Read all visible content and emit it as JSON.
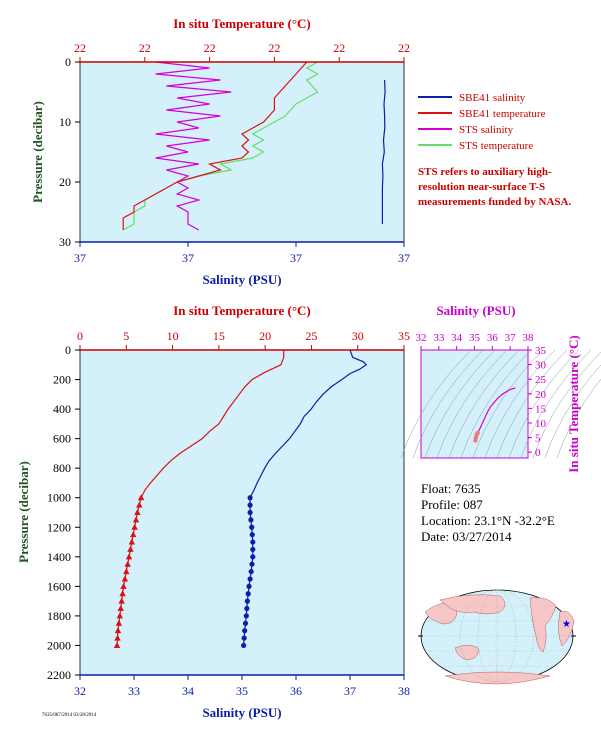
{
  "colors": {
    "salinity": "#0a1faa",
    "temperature": "#dd1111",
    "sts_salinity": "#d400d4",
    "sts_temperature": "#66dd66",
    "plot_bg": "#d4f0fa",
    "axis_blue": "#0a1faa",
    "axis_red": "#cc0000",
    "axis_green": "#225522",
    "axis_magenta": "#cc00cc"
  },
  "legend": {
    "items": [
      {
        "label": "SBE41 salinity",
        "color": "#0a1faa"
      },
      {
        "label": "SBE41 temperature",
        "color": "#dd1111"
      },
      {
        "label": "STS salinity",
        "color": "#d400d4"
      },
      {
        "label": "STS temperature",
        "color": "#66dd66"
      }
    ],
    "note": "STS refers to auxiliary high-resolution near-surface T-S measurements funded by NASA."
  },
  "float_info": {
    "float": "Float:  7635",
    "profile": "Profile:  087",
    "location": "Location:  23.1°N  -32.2°E",
    "date": "Date:  03/27/2014"
  },
  "footer": "7635/087/2014 03/28/2014",
  "chart_data": [
    {
      "type": "line",
      "title": "",
      "top_axis_label": "In situ Temperature (°C)",
      "bottom_axis_label": "Salinity (PSU)",
      "ylabel": "Pressure (decibar)",
      "top_ticks": [
        "22",
        "22",
        "22",
        "22",
        "22",
        "22"
      ],
      "bottom_ticks": [
        "37",
        "37",
        "37",
        "37"
      ],
      "y_ticks": [
        0,
        10,
        20,
        30
      ],
      "ylim": [
        30,
        0
      ],
      "temp_range": [
        21.9,
        22.05
      ],
      "sal_range": [
        36.85,
        37.15
      ],
      "series": [
        {
          "name": "SBE41 salinity",
          "color": "#0a1faa",
          "p": [
            3,
            5,
            7,
            9,
            11,
            13,
            15,
            17,
            19,
            21,
            23,
            25,
            27
          ],
          "sal": [
            37.132,
            37.1325,
            37.1315,
            37.132,
            37.1322,
            37.131,
            37.1318,
            37.13,
            37.1305,
            37.13,
            37.13,
            37.13,
            37.13
          ]
        },
        {
          "name": "STS salinity",
          "color": "#d400d4",
          "p": [
            0,
            1,
            2,
            3,
            4,
            5,
            6,
            7,
            8,
            9,
            10,
            11,
            12,
            13,
            14,
            15,
            16,
            17,
            18,
            19,
            20,
            21,
            22,
            23,
            24,
            25,
            26,
            27,
            28
          ],
          "sal": [
            36.92,
            36.97,
            36.92,
            36.98,
            36.93,
            36.99,
            36.94,
            36.97,
            36.93,
            36.98,
            36.94,
            36.96,
            36.92,
            36.97,
            36.93,
            36.95,
            36.92,
            36.96,
            36.93,
            36.95,
            36.94,
            36.95,
            36.94,
            36.96,
            36.94,
            36.95,
            36.95,
            36.95,
            36.96
          ]
        },
        {
          "name": "STS temperature",
          "color": "#66dd66",
          "p": [
            0,
            1,
            2,
            3,
            5,
            7,
            9,
            10,
            11,
            12,
            13,
            14,
            15,
            16,
            17,
            18,
            19,
            20,
            21,
            22,
            23,
            24,
            25,
            26,
            27,
            28
          ],
          "temp": [
            22.01,
            22.005,
            22.01,
            22.005,
            22.01,
            22.0,
            21.995,
            21.99,
            21.985,
            21.98,
            21.985,
            21.98,
            21.985,
            21.98,
            21.965,
            21.97,
            21.955,
            21.945,
            21.94,
            21.935,
            21.93,
            21.93,
            21.925,
            21.925,
            21.925,
            21.92
          ]
        },
        {
          "name": "SBE41 temperature",
          "color": "#dd1111",
          "p": [
            0,
            2,
            4,
            6,
            8,
            10,
            11,
            12,
            13,
            14,
            15,
            16,
            17,
            18,
            19,
            20,
            21,
            22,
            23,
            24,
            25,
            26,
            27,
            28
          ],
          "temp": [
            22.005,
            22.0,
            21.995,
            21.99,
            21.99,
            21.985,
            21.98,
            21.975,
            21.978,
            21.975,
            21.978,
            21.975,
            21.96,
            21.965,
            21.955,
            21.945,
            21.94,
            21.935,
            21.93,
            21.925,
            21.925,
            21.92,
            21.92,
            21.92
          ]
        }
      ]
    },
    {
      "type": "line",
      "title": "",
      "top_axis_label": "In situ Temperature (°C)",
      "bottom_axis_label": "Salinity (PSU)",
      "ylabel": "Pressure (decibar)",
      "temp_ticks": [
        0,
        5,
        10,
        15,
        20,
        25,
        30,
        35
      ],
      "sal_ticks": [
        32,
        33,
        34,
        35,
        36,
        37,
        38
      ],
      "y_ticks": [
        0,
        200,
        400,
        600,
        800,
        1000,
        1200,
        1400,
        1600,
        1800,
        2000,
        2200
      ],
      "ylim": [
        2200,
        0
      ],
      "series": [
        {
          "name": "SBE41 temperature",
          "color": "#dd1111",
          "p": [
            0,
            50,
            100,
            150,
            200,
            250,
            300,
            350,
            400,
            450,
            500,
            550,
            600,
            650,
            700,
            750,
            800,
            850,
            900,
            950,
            1000,
            1100,
            1200,
            1300,
            1400,
            1500,
            1600,
            1700,
            1800,
            1900,
            2000
          ],
          "temp": [
            22.0,
            22.0,
            21.7,
            20.0,
            18.6,
            17.8,
            17.2,
            16.6,
            16.0,
            15.5,
            15.0,
            14.0,
            13.2,
            12.0,
            10.8,
            9.8,
            9.0,
            8.3,
            7.6,
            7.0,
            6.6,
            6.2,
            5.9,
            5.6,
            5.3,
            5.0,
            4.7,
            4.5,
            4.3,
            4.1,
            4.0
          ]
        },
        {
          "name": "SBE41 salinity",
          "color": "#0a1faa",
          "p": [
            0,
            50,
            80,
            100,
            130,
            160,
            200,
            250,
            300,
            350,
            400,
            450,
            500,
            550,
            600,
            650,
            700,
            750,
            800,
            850,
            900,
            950,
            1000,
            1100,
            1200,
            1300,
            1400,
            1500,
            1600,
            1700,
            1800,
            1900,
            2000
          ],
          "sal": [
            37.0,
            37.05,
            37.25,
            37.3,
            37.18,
            37.0,
            36.85,
            36.65,
            36.5,
            36.38,
            36.28,
            36.15,
            36.08,
            35.98,
            35.88,
            35.75,
            35.62,
            35.5,
            35.42,
            35.35,
            35.28,
            35.22,
            35.15,
            35.15,
            35.18,
            35.2,
            35.2,
            35.17,
            35.13,
            35.1,
            35.08,
            35.05,
            35.03
          ]
        }
      ],
      "markers": {
        "temp_p": [
          1000,
          1050,
          1100,
          1150,
          1200,
          1250,
          1300,
          1350,
          1400,
          1450,
          1500,
          1550,
          1600,
          1650,
          1700,
          1750,
          1800,
          1850,
          1900,
          1950,
          2000
        ],
        "sal_p": [
          1000,
          1050,
          1100,
          1150,
          1200,
          1250,
          1300,
          1350,
          1400,
          1450,
          1500,
          1550,
          1600,
          1650,
          1700,
          1750,
          1800,
          1850,
          1900,
          1950,
          2000
        ]
      }
    },
    {
      "type": "scatter",
      "title": "",
      "top_axis_label": "Salinity (PSU)",
      "right_axis_label": "In situ Temperature (°C)",
      "sal_ticks": [
        32,
        33,
        34,
        35,
        36,
        37,
        38
      ],
      "temp_ticks": [
        0,
        5,
        10,
        15,
        20,
        25,
        30,
        35
      ],
      "xlim": [
        32,
        38
      ],
      "ylim": [
        -2,
        35
      ],
      "sal": [
        35.05,
        35.08,
        35.12,
        35.18,
        35.3,
        35.45,
        35.6,
        35.75,
        35.9,
        36.1,
        36.3,
        36.6,
        37.0,
        37.3
      ],
      "temp": [
        4.0,
        5.0,
        6.0,
        6.6,
        8.0,
        10.0,
        12.0,
        14.0,
        15.5,
        17.0,
        18.5,
        20.0,
        21.5,
        22.0
      ]
    }
  ]
}
